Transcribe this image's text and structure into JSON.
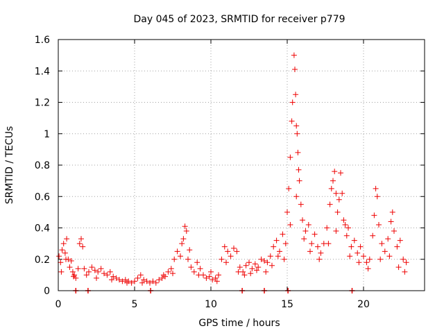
{
  "chart_data": {
    "type": "scatter",
    "title": "Day 045 of 2023, SRMTID for receiver p779",
    "xlabel": "GPS time / hours",
    "ylabel": "SRMTID / TECUs",
    "xlim": [
      0,
      24
    ],
    "ylim": [
      0,
      1.6
    ],
    "xticks": [
      "0",
      "5",
      "10",
      "15",
      "20"
    ],
    "yticks": [
      "0",
      "0.2",
      "0.4",
      "0.6",
      "0.8",
      "1",
      "1.2",
      "1.4",
      "1.6"
    ],
    "grid": true,
    "marker": "+",
    "marker_color": "#ee0000",
    "series": [
      {
        "name": "p779",
        "points": [
          [
            0.05,
            0.22
          ],
          [
            0.15,
            0.18
          ],
          [
            0.25,
            0.26
          ],
          [
            0.35,
            0.3
          ],
          [
            0.45,
            0.24
          ],
          [
            0.55,
            0.33
          ],
          [
            0.65,
            0.2
          ],
          [
            0.75,
            0.15
          ],
          [
            0.85,
            0.19
          ],
          [
            0.95,
            0.12
          ],
          [
            1.05,
            0.1
          ],
          [
            1.15,
            0.08
          ],
          [
            1.3,
            0.14
          ],
          [
            1.4,
            0.3
          ],
          [
            1.5,
            0.33
          ],
          [
            1.6,
            0.28
          ],
          [
            1.7,
            0.14
          ],
          [
            1.85,
            0.1
          ],
          [
            2.0,
            0.12
          ],
          [
            2.2,
            0.15
          ],
          [
            2.4,
            0.13
          ],
          [
            2.6,
            0.12
          ],
          [
            2.8,
            0.14
          ],
          [
            3.0,
            0.11
          ],
          [
            3.2,
            0.1
          ],
          [
            3.4,
            0.12
          ],
          [
            3.6,
            0.09
          ],
          [
            3.8,
            0.08
          ],
          [
            4.0,
            0.07
          ],
          [
            4.2,
            0.06
          ],
          [
            4.4,
            0.07
          ],
          [
            4.6,
            0.06
          ],
          [
            4.8,
            0.05
          ],
          [
            5.0,
            0.06
          ],
          [
            5.2,
            0.08
          ],
          [
            5.4,
            0.1
          ],
          [
            5.6,
            0.07
          ],
          [
            5.8,
            0.06
          ],
          [
            6.0,
            0.05
          ],
          [
            6.2,
            0.06
          ],
          [
            6.4,
            0.05
          ],
          [
            6.6,
            0.07
          ],
          [
            6.8,
            0.08
          ],
          [
            7.0,
            0.09
          ],
          [
            7.2,
            0.12
          ],
          [
            7.4,
            0.14
          ],
          [
            7.6,
            0.2
          ],
          [
            7.8,
            0.25
          ],
          [
            8.0,
            0.22
          ],
          [
            8.1,
            0.3
          ],
          [
            8.2,
            0.33
          ],
          [
            8.3,
            0.41
          ],
          [
            8.4,
            0.38
          ],
          [
            8.5,
            0.2
          ],
          [
            8.7,
            0.15
          ],
          [
            8.9,
            0.12
          ],
          [
            9.1,
            0.18
          ],
          [
            9.3,
            0.14
          ],
          [
            9.5,
            0.1
          ],
          [
            9.7,
            0.08
          ],
          [
            9.9,
            0.09
          ],
          [
            10.1,
            0.07
          ],
          [
            10.3,
            0.08
          ],
          [
            10.5,
            0.1
          ],
          [
            10.7,
            0.2
          ],
          [
            10.9,
            0.28
          ],
          [
            11.1,
            0.25
          ],
          [
            11.3,
            0.22
          ],
          [
            11.5,
            0.27
          ],
          [
            11.7,
            0.25
          ],
          [
            11.9,
            0.15
          ],
          [
            12.1,
            0.12
          ],
          [
            12.3,
            0.16
          ],
          [
            12.5,
            0.18
          ],
          [
            12.7,
            0.14
          ],
          [
            12.9,
            0.17
          ],
          [
            13.1,
            0.15
          ],
          [
            13.3,
            0.2
          ],
          [
            13.5,
            0.19
          ],
          [
            13.7,
            0.18
          ],
          [
            13.9,
            0.22
          ],
          [
            14.1,
            0.28
          ],
          [
            14.3,
            0.32
          ],
          [
            14.5,
            0.25
          ],
          [
            14.7,
            0.36
          ],
          [
            14.9,
            0.3
          ],
          [
            15.0,
            0.5
          ],
          [
            15.1,
            0.65
          ],
          [
            15.2,
            0.85
          ],
          [
            15.3,
            1.08
          ],
          [
            15.35,
            1.2
          ],
          [
            15.45,
            1.5
          ],
          [
            15.5,
            1.41
          ],
          [
            15.55,
            1.25
          ],
          [
            15.6,
            1.05
          ],
          [
            15.65,
            1.0
          ],
          [
            15.7,
            0.88
          ],
          [
            15.75,
            0.77
          ],
          [
            15.8,
            0.7
          ],
          [
            15.9,
            0.55
          ],
          [
            16.0,
            0.45
          ],
          [
            16.2,
            0.38
          ],
          [
            16.4,
            0.42
          ],
          [
            16.6,
            0.3
          ],
          [
            16.8,
            0.36
          ],
          [
            17.0,
            0.28
          ],
          [
            17.2,
            0.24
          ],
          [
            17.4,
            0.3
          ],
          [
            17.6,
            0.4
          ],
          [
            17.8,
            0.55
          ],
          [
            17.9,
            0.65
          ],
          [
            18.0,
            0.7
          ],
          [
            18.1,
            0.76
          ],
          [
            18.2,
            0.62
          ],
          [
            18.3,
            0.5
          ],
          [
            18.4,
            0.58
          ],
          [
            18.5,
            0.75
          ],
          [
            18.6,
            0.62
          ],
          [
            18.7,
            0.45
          ],
          [
            18.8,
            0.42
          ],
          [
            18.9,
            0.35
          ],
          [
            19.0,
            0.4
          ],
          [
            19.2,
            0.28
          ],
          [
            19.4,
            0.32
          ],
          [
            19.6,
            0.24
          ],
          [
            19.8,
            0.28
          ],
          [
            20.0,
            0.22
          ],
          [
            20.2,
            0.18
          ],
          [
            20.4,
            0.2
          ],
          [
            20.6,
            0.35
          ],
          [
            20.7,
            0.48
          ],
          [
            20.8,
            0.65
          ],
          [
            20.9,
            0.6
          ],
          [
            21.0,
            0.42
          ],
          [
            21.2,
            0.3
          ],
          [
            21.4,
            0.25
          ],
          [
            21.6,
            0.33
          ],
          [
            21.8,
            0.44
          ],
          [
            21.9,
            0.5
          ],
          [
            22.0,
            0.38
          ],
          [
            22.2,
            0.28
          ],
          [
            22.4,
            0.32
          ],
          [
            22.6,
            0.2
          ],
          [
            22.8,
            0.18
          ],
          [
            0.5,
            0.2
          ],
          [
            0.2,
            0.12
          ],
          [
            2.5,
            0.08
          ],
          [
            3.5,
            0.07
          ],
          [
            6.9,
            0.1
          ],
          [
            8.6,
            0.26
          ],
          [
            9.2,
            0.1
          ],
          [
            10.0,
            0.12
          ],
          [
            11.0,
            0.18
          ],
          [
            12.2,
            0.1
          ],
          [
            13.0,
            0.13
          ],
          [
            14.0,
            0.16
          ],
          [
            14.4,
            0.22
          ],
          [
            15.2,
            0.42
          ],
          [
            15.6,
            0.6
          ],
          [
            16.1,
            0.33
          ],
          [
            16.5,
            0.25
          ],
          [
            17.1,
            0.2
          ],
          [
            17.7,
            0.3
          ],
          [
            18.2,
            0.38
          ],
          [
            19.1,
            0.22
          ],
          [
            19.7,
            0.18
          ],
          [
            20.3,
            0.14
          ],
          [
            21.1,
            0.2
          ],
          [
            21.7,
            0.22
          ],
          [
            22.3,
            0.15
          ],
          [
            22.7,
            0.12
          ],
          [
            1.0,
            0.09
          ],
          [
            4.5,
            0.05
          ],
          [
            5.5,
            0.05
          ],
          [
            7.5,
            0.11
          ],
          [
            10.4,
            0.06
          ],
          [
            11.8,
            0.12
          ],
          [
            12.6,
            0.11
          ],
          [
            13.6,
            0.12
          ],
          [
            14.8,
            0.2
          ]
        ],
        "zero_points": [
          1.15,
          1.95,
          6.05,
          12.05,
          13.5,
          15.05,
          19.25
        ]
      }
    ]
  }
}
